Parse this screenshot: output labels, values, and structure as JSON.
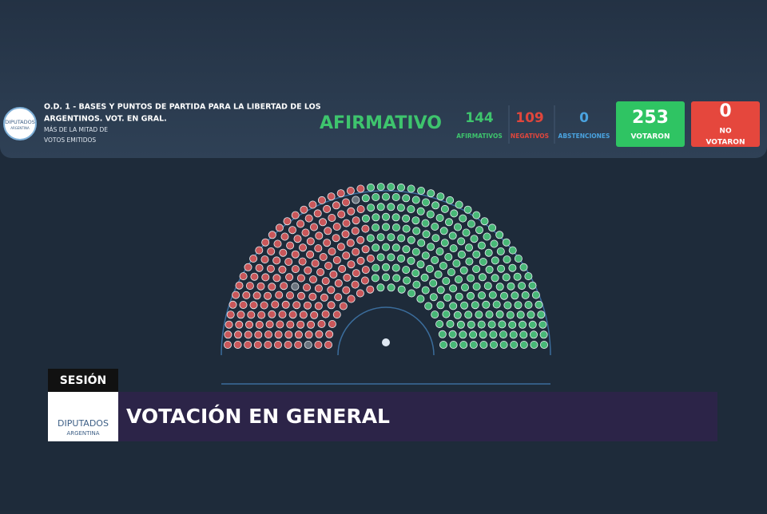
{
  "header": {
    "logo": "DIPUTADOS",
    "logo_sub": "ARGENTINA",
    "title_lines": [
      "O.D. 1 - BASES Y PUNTOS DE PARTIDA PARA LA LIBERTAD DE LOS",
      "ARGENTINOS. VOT. EN GRAL."
    ],
    "subtitle_lines": [
      "MÁS DE LA MITAD DE",
      "VOTOS EMITIDOS"
    ]
  },
  "result": "AFIRMATIVO",
  "counts": [
    {
      "value": 144,
      "label": "AFIRMATIVOS"
    },
    {
      "value": 109,
      "label": "NEGATIVOS"
    },
    {
      "value": 0,
      "label": "ABSTENCIONES"
    }
  ],
  "votaron": {
    "value": 253,
    "label": "VOTARON"
  },
  "no_votaron": {
    "value": 0,
    "label_lines": [
      "NO",
      "VOTARON"
    ]
  },
  "banner": {
    "section": "SESIÓN",
    "logo": "DIPUTADOS",
    "logo_sub": "ARGENTINA",
    "title": "VOTACIÓN EN GENERAL"
  }
}
